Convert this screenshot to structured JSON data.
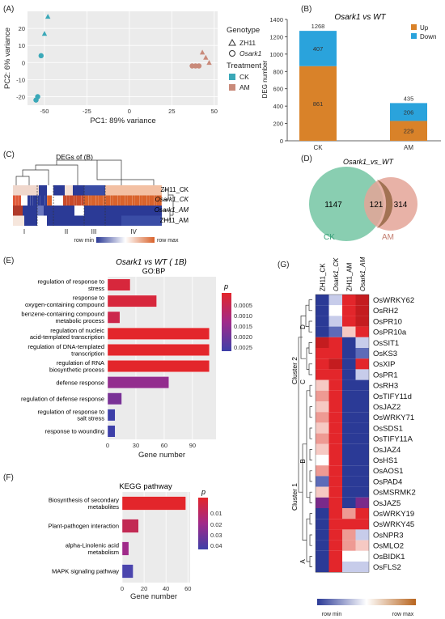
{
  "panels": {
    "A": {
      "label": "(A)",
      "xlabel": "PC1: 89% variance",
      "ylabel": "PC2: 6% variance",
      "legend": {
        "genotype_title": "Genotype",
        "genotype_items": [
          "ZH11",
          "Osark1"
        ],
        "treatment_title": "Treatment",
        "treatment_items": [
          "CK",
          "AM"
        ]
      },
      "xticks": [
        "-50",
        "-25",
        "0",
        "25",
        "50"
      ],
      "yticks": [
        "20",
        "10",
        "0",
        "-10",
        "-20"
      ],
      "colors": {
        "CK": "#3aa8b8",
        "AM": "#c98a7a"
      }
    },
    "B": {
      "label": "(B)",
      "title": "Osark1 vs WT",
      "ylabel": "DEG number",
      "legend": [
        "Up",
        "Down"
      ],
      "yticks": [
        "0",
        "200",
        "400",
        "600",
        "800",
        "1000",
        "1200",
        "1400"
      ],
      "colors": {
        "Up": "#d98229",
        "Down": "#2aa3dc"
      }
    },
    "C": {
      "label": "(C)",
      "title": "DEGs of (B)",
      "rows": [
        "ZH11_CK",
        "Osark1_CK",
        "Osark1_AM",
        "ZH11_AM"
      ],
      "clusters": [
        "I",
        "II",
        "III",
        "IV"
      ],
      "scale_min": "row min",
      "scale_max": "row max"
    },
    "D": {
      "label": "(D)",
      "title": "Osark1_vs_WT",
      "only_ck": "1147",
      "overlap": "121",
      "only_am": "314",
      "set_ck": "CK",
      "set_am": "AM"
    },
    "E": {
      "label": "(E)",
      "title": "Osark1 vs WT ( 1B)",
      "subtitle": "GO:BP",
      "xlabel": "Gene number",
      "xticks": [
        "0",
        "30",
        "60",
        "90"
      ],
      "legend_title": "p",
      "legend_ticks": [
        "0.0005",
        "0.0010",
        "0.0015",
        "0.0020",
        "0.0025"
      ]
    },
    "F": {
      "label": "(F)",
      "title": "KEGG pathway",
      "xlabel": "Gene number",
      "xticks": [
        "0",
        "20",
        "40",
        "60"
      ],
      "legend_title": "p",
      "legend_ticks": [
        "0.01",
        "0.02",
        "0.03",
        "0.04"
      ]
    },
    "G": {
      "label": "(G)",
      "columns": [
        "ZH11_CK",
        "Osark1_CK",
        "ZH11_AM",
        "Osark1_AM"
      ],
      "genes": [
        "OsWRKY62",
        "OsRH2",
        "OsPR10",
        "OsPR10a",
        "OsSIT1",
        "OsKS3",
        "OsXIP",
        "OsPR1",
        "OsRH3",
        "OsTIFY11d",
        "OsJAZ2",
        "OsWRKY71",
        "OsSDS1",
        "OsTIFY11A",
        "OsJAZ4",
        "OsHS1",
        "OsAOS1",
        "OsPAD4",
        "OsMSRMK2",
        "OsJAZ5",
        "OsWRKY19",
        "OsWRKY45",
        "OsNPR3",
        "OsMLO2",
        "OsBIDK1",
        "OsFLS2"
      ],
      "cluster_labels": [
        "Cluster 2",
        "Cluster 1"
      ],
      "sub_labels": [
        "D",
        "C",
        "B",
        "A"
      ],
      "scale_min": "row min",
      "scale_max": "row max"
    }
  },
  "chart_data": [
    {
      "type": "scatter",
      "panel": "A",
      "xlabel": "PC1: 89% variance",
      "ylabel": "PC2: 6% variance",
      "xlim": [
        -60,
        52
      ],
      "ylim": [
        -25,
        30
      ],
      "series": [
        {
          "name": "ZH11",
          "treatment": "CK",
          "shape": "triangle",
          "points": [
            [
              -48,
              27
            ],
            [
              -50,
              17
            ]
          ]
        },
        {
          "name": "Osark1",
          "treatment": "CK",
          "shape": "circle",
          "points": [
            [
              -54,
              -20
            ],
            [
              -55,
              -22
            ],
            [
              -52,
              4
            ]
          ]
        },
        {
          "name": "ZH11",
          "treatment": "AM",
          "shape": "triangle",
          "points": [
            [
              43,
              6
            ],
            [
              45,
              3
            ],
            [
              47,
              0
            ]
          ]
        },
        {
          "name": "Osark1",
          "treatment": "AM",
          "shape": "circle",
          "points": [
            [
              37,
              -2
            ],
            [
              39,
              -2
            ],
            [
              41,
              -2
            ]
          ]
        }
      ]
    },
    {
      "type": "bar",
      "panel": "B",
      "categories": [
        "CK",
        "AM"
      ],
      "series": [
        {
          "name": "Up",
          "values": [
            861,
            229
          ]
        },
        {
          "name": "Down",
          "values": [
            407,
            206
          ]
        }
      ],
      "totals": [
        1268,
        435
      ],
      "ylabel": "DEG number",
      "ylim": [
        0,
        1400
      ]
    },
    {
      "type": "bar",
      "panel": "E",
      "categories": [
        "regulation of response to stress",
        "response to oxygen-containing compound",
        "benzene-containing compound metabolic process",
        "regulation of nucleic acid-templated transcription",
        "regulation of DNA-templated transcription",
        "regulation of RNA biosynthetic process",
        "defense response",
        "regulation of defense response",
        "regulation of response to salt stress",
        "response to wounding"
      ],
      "values": [
        24,
        52,
        13,
        108,
        108,
        108,
        65,
        15,
        8,
        8
      ],
      "p_values": [
        0.0004,
        0.0004,
        0.0006,
        0.0002,
        0.0002,
        0.0002,
        0.0015,
        0.0018,
        0.0025,
        0.0025
      ],
      "xlabel": "Gene number",
      "xlim": [
        0,
        115
      ]
    },
    {
      "type": "bar",
      "panel": "F",
      "categories": [
        "Biosynthesis of secondary metabolites",
        "Plant-pathogen interaction",
        "alpha-Linolenic acid metabolism",
        "MAPK signaling pathway"
      ],
      "values": [
        58,
        15,
        6,
        10
      ],
      "p_values": [
        0.002,
        0.01,
        0.025,
        0.045
      ],
      "xlabel": "Gene number",
      "xlim": [
        0,
        62
      ]
    }
  ]
}
